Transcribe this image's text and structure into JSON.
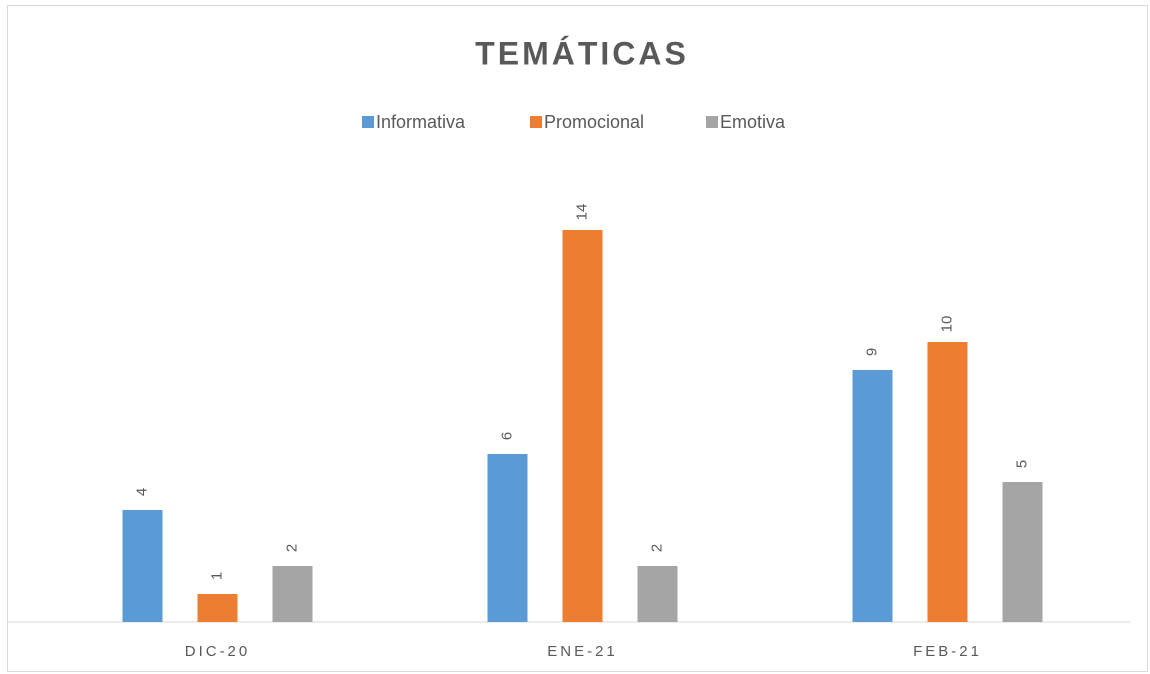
{
  "chart_data": {
    "type": "bar",
    "title": "TEMÁTICAS",
    "categories": [
      "DIC-20",
      "ENE-21",
      "FEB-21"
    ],
    "series": [
      {
        "name": "Informativa",
        "color": "#5b9bd5",
        "values": [
          4,
          6,
          9
        ]
      },
      {
        "name": "Promocional",
        "color": "#ed7d31",
        "values": [
          1,
          14,
          10
        ]
      },
      {
        "name": "Emotiva",
        "color": "#a5a5a5",
        "values": [
          2,
          2,
          5
        ]
      }
    ],
    "ylim": [
      0,
      16
    ],
    "legend": "top"
  }
}
